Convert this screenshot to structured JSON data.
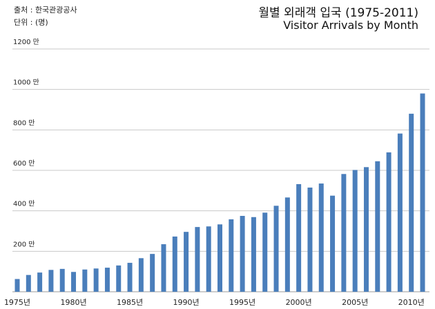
{
  "source": {
    "line1": "출처 : 한국관광공사",
    "line2": "단위 : (명)"
  },
  "chart_data": {
    "type": "bar",
    "title": "월별 외래객 입국 (1975-2011)",
    "subtitle": "Visitor Arrivals by Month",
    "ylim": [
      0,
      12000000
    ],
    "yticks": [
      {
        "value": 2000000,
        "label": "200 만"
      },
      {
        "value": 4000000,
        "label": "400 만"
      },
      {
        "value": 6000000,
        "label": "600 만"
      },
      {
        "value": 8000000,
        "label": "800 만"
      },
      {
        "value": 10000000,
        "label": "1000 만"
      },
      {
        "value": 12000000,
        "label": "1200 만"
      }
    ],
    "xtick_labels": [
      "1975년",
      "1980년",
      "1985년",
      "1990년",
      "1995년",
      "2000년",
      "2005년",
      "2010년"
    ],
    "grid": true,
    "bar_color": "#4a7ebb",
    "categories": [
      1975,
      1976,
      1977,
      1978,
      1979,
      1980,
      1981,
      1982,
      1983,
      1984,
      1985,
      1986,
      1987,
      1988,
      1989,
      1990,
      1991,
      1992,
      1993,
      1994,
      1995,
      1996,
      1997,
      1998,
      1999,
      2000,
      2001,
      2002,
      2003,
      2004,
      2005,
      2006,
      2007,
      2008,
      2009,
      2010,
      2011
    ],
    "values": [
      630000,
      830000,
      950000,
      1080000,
      1130000,
      980000,
      1100000,
      1150000,
      1190000,
      1300000,
      1430000,
      1660000,
      1870000,
      2350000,
      2730000,
      2960000,
      3200000,
      3230000,
      3330000,
      3580000,
      3750000,
      3690000,
      3910000,
      4250000,
      4660000,
      5320000,
      5150000,
      5350000,
      4750000,
      5820000,
      6020000,
      6160000,
      6450000,
      6890000,
      7820000,
      8800000,
      9800000
    ]
  }
}
